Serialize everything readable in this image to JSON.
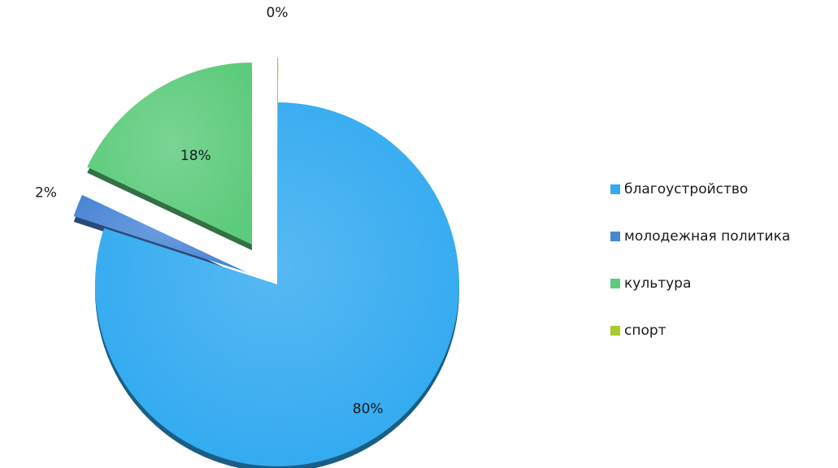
{
  "chart_data": {
    "type": "pie",
    "title": "",
    "categories": [
      "благоустройство",
      "молодежная политика",
      "культура",
      "спорт"
    ],
    "values": [
      80,
      2,
      18,
      0
    ],
    "data_labels": [
      "80%",
      "2%",
      "18%",
      "0%"
    ],
    "colors": [
      "#31aaf0",
      "#4a86d6",
      "#5ccb7c",
      "#a8cc2c"
    ],
    "exploded": true,
    "three_d": true,
    "legend_position": "right"
  }
}
